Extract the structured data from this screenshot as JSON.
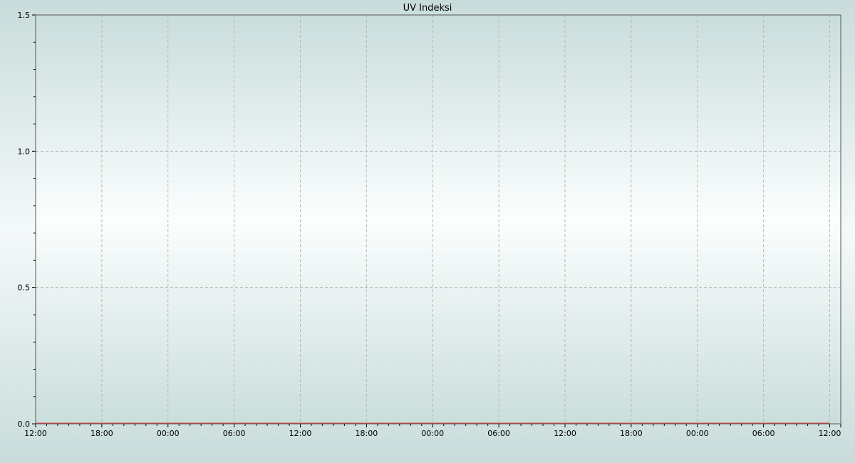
{
  "chart_data": {
    "type": "line",
    "title": "UV Indeksi",
    "xlabel": "",
    "ylabel": "",
    "x_tick_labels": [
      "12:00",
      "18:00",
      "00:00",
      "06:00",
      "12:00",
      "18:00",
      "00:00",
      "06:00",
      "12:00",
      "18:00",
      "00:00",
      "06:00",
      "12:00"
    ],
    "y_tick_labels": [
      "0.0",
      "0.5",
      "1.0",
      "1.5"
    ],
    "ylim": [
      0,
      1.5
    ],
    "x_minor_tick": "1 hour",
    "x_major_tick": "6 hours",
    "y_minor_tick": 0.1,
    "grid": true,
    "series": [
      {
        "color": "#e8423f",
        "x": [
          "12:00",
          "13:00",
          "14:00",
          "15:00",
          "16:00",
          "17:00",
          "18:00",
          "19:00",
          "20:00",
          "21:00",
          "22:00",
          "23:00",
          "00:00",
          "01:00",
          "02:00",
          "03:00",
          "04:00",
          "05:00",
          "06:00",
          "07:00",
          "08:00",
          "09:00",
          "10:00",
          "11:00",
          "12:00",
          "13:00",
          "14:00",
          "15:00",
          "16:00",
          "17:00",
          "18:00",
          "19:00",
          "20:00",
          "21:00",
          "22:00",
          "23:00",
          "00:00",
          "01:00",
          "02:00",
          "03:00",
          "04:00",
          "05:00",
          "06:00",
          "07:00",
          "08:00",
          "09:00",
          "10:00",
          "11:00",
          "12:00",
          "13:00",
          "14:00",
          "15:00",
          "16:00",
          "17:00",
          "18:00",
          "19:00",
          "20:00",
          "21:00",
          "22:00",
          "23:00",
          "00:00",
          "01:00",
          "02:00",
          "03:00",
          "04:00",
          "05:00",
          "06:00",
          "07:00",
          "08:00",
          "09:00",
          "10:00",
          "11:00",
          "12:00"
        ],
        "values": [
          0,
          0,
          0,
          0,
          0,
          0,
          0,
          0,
          0,
          0,
          0,
          0,
          0,
          0,
          0,
          0,
          0,
          0,
          0,
          0,
          0,
          0,
          0,
          0,
          0,
          0,
          0,
          0,
          0,
          0,
          0,
          0,
          0,
          0,
          0,
          0,
          0,
          0,
          0,
          0,
          0,
          0,
          0,
          0,
          0,
          0,
          0,
          0,
          0,
          0,
          0,
          0,
          0,
          0,
          0,
          0,
          0,
          0,
          0,
          0,
          0,
          0,
          0,
          0,
          0,
          0,
          0,
          0,
          0,
          0,
          0,
          0,
          0
        ]
      }
    ],
    "colors": {
      "grid": "#b8b8b8",
      "axis": "#555555"
    }
  }
}
